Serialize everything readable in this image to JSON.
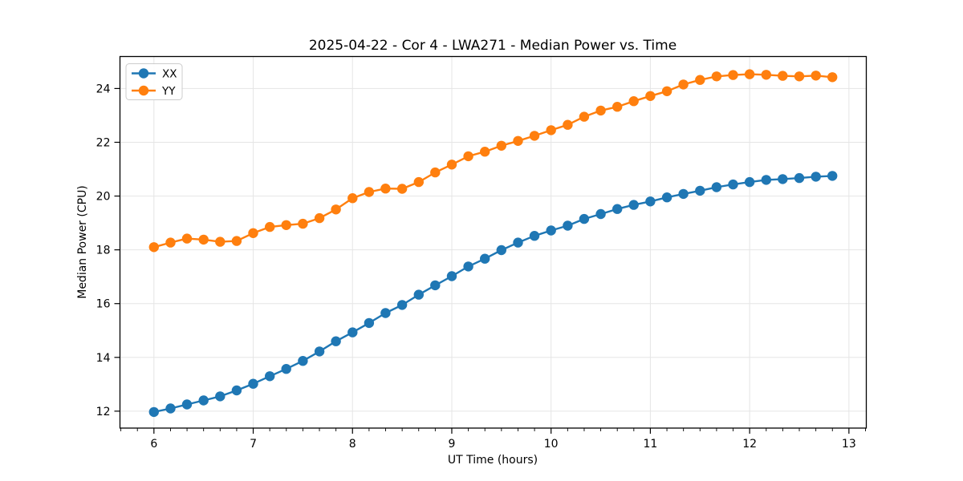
{
  "chart_data": {
    "type": "line",
    "title": "2025-04-22 - Cor 4 - LWA271 - Median Power vs. Time",
    "xlabel": "UT Time (hours)",
    "ylabel": "Median Power (CPU)",
    "xlim": [
      5.658,
      13.175
    ],
    "ylim": [
      11.37,
      25.19
    ],
    "xticks": [
      6,
      7,
      8,
      9,
      10,
      11,
      12,
      13
    ],
    "yticks": [
      12,
      14,
      16,
      18,
      20,
      22,
      24
    ],
    "x_minor_step": 0.16667,
    "grid": true,
    "legend_position": "upper left",
    "marker": "circle",
    "colors": {
      "series_xx": "#1f77b4",
      "series_yy": "#ff7f0e",
      "grid": "#e5e5e5",
      "spine": "#000000",
      "text": "#000000",
      "legend_border": "#cccccc",
      "background": "#ffffff"
    },
    "x": [
      6.0,
      6.167,
      6.333,
      6.5,
      6.667,
      6.833,
      7.0,
      7.167,
      7.333,
      7.5,
      7.667,
      7.833,
      8.0,
      8.167,
      8.333,
      8.5,
      8.667,
      8.833,
      9.0,
      9.167,
      9.333,
      9.5,
      9.667,
      9.833,
      10.0,
      10.167,
      10.333,
      10.5,
      10.667,
      10.833,
      11.0,
      11.167,
      11.333,
      11.5,
      11.667,
      11.833,
      12.0,
      12.167,
      12.333,
      12.5,
      12.667,
      12.833
    ],
    "series": [
      {
        "name": "XX",
        "color": "#1f77b4",
        "values": [
          11.97,
          12.1,
          12.25,
          12.4,
          12.55,
          12.77,
          13.02,
          13.3,
          13.57,
          13.87,
          14.22,
          14.6,
          14.93,
          15.28,
          15.65,
          15.95,
          16.33,
          16.68,
          17.02,
          17.38,
          17.67,
          17.99,
          18.27,
          18.52,
          18.72,
          18.9,
          19.15,
          19.33,
          19.52,
          19.67,
          19.8,
          19.95,
          20.08,
          20.2,
          20.33,
          20.43,
          20.52,
          20.6,
          20.63,
          20.67,
          20.72,
          20.75
        ]
      },
      {
        "name": "YY",
        "color": "#ff7f0e",
        "values": [
          18.1,
          18.27,
          18.42,
          18.38,
          18.3,
          18.33,
          18.62,
          18.85,
          18.92,
          18.97,
          19.18,
          19.5,
          19.92,
          20.15,
          20.28,
          20.27,
          20.52,
          20.88,
          21.17,
          21.48,
          21.65,
          21.87,
          22.05,
          22.24,
          22.45,
          22.65,
          22.95,
          23.18,
          23.32,
          23.53,
          23.72,
          23.9,
          24.15,
          24.32,
          24.45,
          24.5,
          24.53,
          24.51,
          24.47,
          24.45,
          24.48,
          24.42
        ]
      }
    ]
  }
}
